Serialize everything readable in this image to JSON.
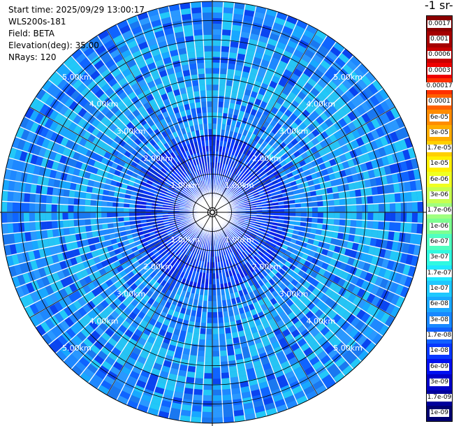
{
  "header": {
    "unit_title": "-1 sr-",
    "lines": [
      "Start time: 2025/09/29 13:00:17",
      "WLS200s-181",
      "Field: BETA",
      "Elevation(deg): 35.00",
      "NRays: 120"
    ]
  },
  "chart_data": {
    "type": "heatmap",
    "title": "",
    "projection": "polar-ppi",
    "field": "BETA",
    "elevation_deg": 35.0,
    "n_rays": 120,
    "range_labels_km": [
      "1.00km",
      "2.00km",
      "3.00km",
      "4.00km",
      "5.00km"
    ],
    "range_rings_km": [
      1,
      2,
      3,
      4,
      5
    ],
    "max_range_km": 5.5,
    "colorbar": {
      "scale": "log",
      "labels_top_to_bottom": [
        "0.0017",
        "0.001",
        "0.0006",
        "0.0003",
        "0.00017",
        "0.0001",
        "6e-05",
        "3e-05",
        "1.7e-05",
        "1e-05",
        "6e-06",
        "3e-06",
        "1.7e-06",
        "1e-06",
        "6e-07",
        "3e-07",
        "1.7e-07",
        "1e-07",
        "6e-08",
        "3e-08",
        "1.7e-08",
        "1e-08",
        "6e-09",
        "3e-09",
        "1.7e-09",
        "1e-09"
      ],
      "colors_top_to_bottom": [
        "#8b0000",
        "#a50000",
        "#c80000",
        "#ee0000",
        "#ff3000",
        "#ff6000",
        "#ff8c00",
        "#ffad00",
        "#ffd000",
        "#fff000",
        "#f0ff20",
        "#c8ff50",
        "#a0ff80",
        "#7cff90",
        "#50ffc0",
        "#30f8e0",
        "#20e8ff",
        "#1ec8ff",
        "#1aa8ff",
        "#1888ff",
        "#1060ff",
        "#0838ff",
        "#0010f0",
        "#0000c8",
        "#00009c",
        "#000070"
      ]
    },
    "background_level": "3e-08 to 1e-07",
    "near_field_level": "1e-08 to 3e-08"
  }
}
